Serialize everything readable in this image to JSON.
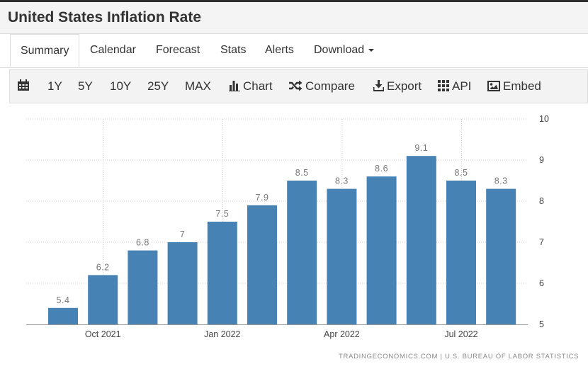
{
  "page_title": "United States Inflation Rate",
  "tabs": [
    {
      "label": "Summary"
    },
    {
      "label": "Calendar"
    },
    {
      "label": "Forecast"
    },
    {
      "label": "Stats"
    },
    {
      "label": "Alerts"
    },
    {
      "label": "Download"
    }
  ],
  "toolbar": {
    "ranges": [
      "1Y",
      "5Y",
      "10Y",
      "25Y",
      "MAX"
    ],
    "chart": "Chart",
    "compare": "Compare",
    "export": "Export",
    "api": "API",
    "embed": "Embed"
  },
  "icons": [
    "calendar-icon",
    "bar-chart-icon",
    "shuffle-icon",
    "download-icon",
    "grid-icon",
    "image-icon",
    "caret-down-icon"
  ],
  "colors": {
    "bar": "#4682b4",
    "label": "#777777",
    "grid": "#cccccc"
  },
  "credit": "TRADINGECONOMICS.COM  |  U.S. BUREAU OF LABOR STATISTICS",
  "chart_data": {
    "type": "bar",
    "months": [
      "2021-09",
      "2021-10",
      "2021-11",
      "2021-12",
      "2022-01",
      "2022-02",
      "2022-03",
      "2022-04",
      "2022-05",
      "2022-06",
      "2022-07",
      "2022-08"
    ],
    "values": [
      5.4,
      6.2,
      6.8,
      7,
      7.5,
      7.9,
      8.5,
      8.3,
      8.6,
      9.1,
      8.5,
      8.3
    ],
    "value_labels": [
      "5.4",
      "6.2",
      "6.8",
      "7",
      "7.5",
      "7.9",
      "8.5",
      "8.3",
      "8.6",
      "9.1",
      "8.5",
      "8.3"
    ],
    "x_ticks": [
      "Oct 2021",
      "Jan 2022",
      "Apr 2022",
      "Jul 2022"
    ],
    "y_ticks": [
      "10",
      "9",
      "8",
      "7",
      "6",
      "5"
    ],
    "ylim": [
      5,
      10
    ],
    "y_axis_side": "right",
    "grid": true
  }
}
